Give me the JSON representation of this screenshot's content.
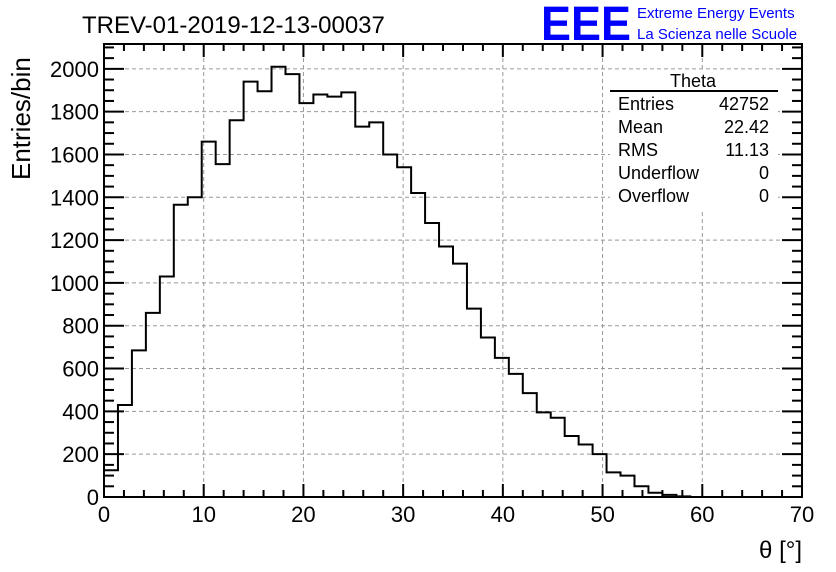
{
  "logo": {
    "mark": "EEE",
    "line1": "Extreme Energy Events",
    "line2": "La Scienza nelle Scuole",
    "color": "#0000ff"
  },
  "chart_data": {
    "type": "bar",
    "title": "TREV-01-2019-12-13-00037",
    "xlabel": "θ [°]",
    "ylabel": "Entries/bin",
    "xlim": [
      0,
      70
    ],
    "ylim": [
      0,
      2116
    ],
    "grid": true,
    "bin_width": 1.4,
    "x_ticks": [
      "0",
      "10",
      "20",
      "30",
      "40",
      "50",
      "60",
      "70"
    ],
    "y_ticks": [
      "0",
      "200",
      "400",
      "600",
      "800",
      "1000",
      "1200",
      "1400",
      "1600",
      "1800",
      "2000"
    ],
    "values": [
      125,
      430,
      685,
      860,
      1030,
      1365,
      1400,
      1660,
      1555,
      1760,
      1940,
      1895,
      2010,
      1975,
      1840,
      1880,
      1870,
      1890,
      1730,
      1750,
      1600,
      1540,
      1420,
      1280,
      1170,
      1090,
      880,
      745,
      650,
      575,
      485,
      395,
      370,
      285,
      245,
      200,
      115,
      100,
      50,
      20,
      10,
      3,
      0,
      0,
      0,
      0,
      0,
      0,
      0,
      0
    ],
    "stats": {
      "name": "Theta",
      "rows": [
        {
          "label": "Entries",
          "value": "42752"
        },
        {
          "label": "Mean",
          "value": "22.42"
        },
        {
          "label": "RMS",
          "value": "11.13"
        },
        {
          "label": "Underflow",
          "value": "0"
        },
        {
          "label": "Overflow",
          "value": "0"
        }
      ]
    }
  }
}
